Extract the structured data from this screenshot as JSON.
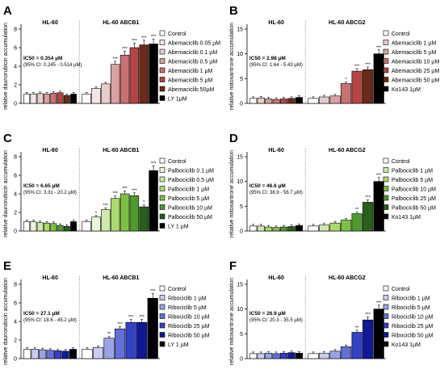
{
  "chart_data": [
    {
      "panel": "A",
      "type": "bar",
      "ylabel": "relative daunorubicin accumulation",
      "ylim": [
        0,
        8
      ],
      "yticks": [
        0,
        2,
        4,
        6,
        8
      ],
      "group_labels": [
        "HL-60",
        "HL-60 ABCB1"
      ],
      "ic50": "IC50 = 0.354 µM",
      "ci": "(95% CI: 0.245 - 0.514 µM)",
      "legend": [
        {
          "label": "Control",
          "color": "#ffffff"
        },
        {
          "label": "Abemaciclib 0.05 µM",
          "color": "#f4e6e6"
        },
        {
          "label": "Abemaciclib 0.1 µM",
          "color": "#e8cccc"
        },
        {
          "label": "Abemaciclib 0.5 µM",
          "color": "#d9a1a1"
        },
        {
          "label": "Abemaciclib 1 µM",
          "color": "#c97171"
        },
        {
          "label": "Abemaciclib 5 µM",
          "color": "#b54545"
        },
        {
          "label": "Abemaciclib 50µM",
          "color": "#6b2a1a"
        },
        {
          "label": "LY 1µM",
          "color": "#000000"
        }
      ],
      "groups": [
        {
          "values": [
            1.0,
            1.0,
            1.05,
            1.0,
            1.1,
            1.15,
            0.85,
            1.0
          ],
          "sig": [
            "",
            "",
            "",
            "",
            "",
            "",
            "",
            ""
          ]
        },
        {
          "values": [
            1.0,
            1.6,
            2.1,
            4.2,
            5.2,
            6.0,
            6.3,
            6.4
          ],
          "sig": [
            "",
            "",
            "",
            "***",
            "***",
            "***",
            "***",
            "***"
          ]
        }
      ]
    },
    {
      "panel": "B",
      "type": "bar",
      "ylabel": "relative mitoxantrone accumulation",
      "ylim": [
        0,
        15
      ],
      "yticks": [
        0,
        5,
        10,
        15
      ],
      "group_labels": [
        "HL-60",
        "HL-60 ABCG2"
      ],
      "ic50": "IC50 = 2.98 µM",
      "ci": "(95% CI: 1.64 - 5.43 µM)",
      "legend": [
        {
          "label": "Control",
          "color": "#ffffff"
        },
        {
          "label": "Abemaciclib 1 µM",
          "color": "#e8cccc"
        },
        {
          "label": "Abemaciclib 5 µM",
          "color": "#d9a1a1"
        },
        {
          "label": "Abemaciclib 10 µM",
          "color": "#c97171"
        },
        {
          "label": "Abemaciclib 25 µM",
          "color": "#b54545"
        },
        {
          "label": "Abemaciclib 50 µM",
          "color": "#6b2a1a"
        },
        {
          "label": "Ko143 1µM",
          "color": "#000000"
        }
      ],
      "groups": [
        {
          "values": [
            1.0,
            1.1,
            0.9,
            0.8,
            0.9,
            1.0,
            1.2
          ],
          "sig": [
            "",
            "",
            "",
            "",
            "",
            "",
            ""
          ]
        },
        {
          "values": [
            1.0,
            1.3,
            1.5,
            4.0,
            6.5,
            6.8,
            10.0
          ],
          "sig": [
            "",
            "",
            "",
            "*",
            "***",
            "***",
            "***"
          ]
        }
      ]
    },
    {
      "panel": "C",
      "type": "bar",
      "ylabel": "relative daunorubicin accumulation",
      "ylim": [
        0,
        8
      ],
      "yticks": [
        0,
        2,
        4,
        6,
        8
      ],
      "group_labels": [
        "HL-60",
        "HL-60 ABCB1"
      ],
      "ic50": "IC50 = 6.65 µM",
      "ci": "(95% CI: 3.31 - 20.2 µM)",
      "legend": [
        {
          "label": "Control",
          "color": "#ffffff"
        },
        {
          "label": "Palbociclib 0.1 µM",
          "color": "#e8f5d8"
        },
        {
          "label": "Palbociclib 0.5 µM",
          "color": "#cdeaa8"
        },
        {
          "label": "Palbociclib 1 µM",
          "color": "#a9dc6a"
        },
        {
          "label": "Palbociclib 5 µM",
          "color": "#7cc242"
        },
        {
          "label": "Palbociclib 10 µM",
          "color": "#4f9a2e"
        },
        {
          "label": "Palbociclib 50 µM",
          "color": "#285f1a"
        },
        {
          "label": "LY 1 µM",
          "color": "#000000"
        }
      ],
      "groups": [
        {
          "values": [
            1.0,
            1.0,
            0.9,
            0.85,
            0.8,
            0.6,
            0.5,
            1.0
          ],
          "sig": [
            "",
            "",
            "",
            "",
            "",
            "",
            "",
            ""
          ]
        },
        {
          "values": [
            1.0,
            1.5,
            2.3,
            3.5,
            4.0,
            3.8,
            2.6,
            6.5
          ],
          "sig": [
            "",
            "*",
            "***",
            "***",
            "***",
            "***",
            "*",
            "***"
          ]
        }
      ]
    },
    {
      "panel": "D",
      "type": "bar",
      "ylabel": "relative mitoxantrone accumulation",
      "ylim": [
        0,
        15
      ],
      "yticks": [
        0,
        5,
        10,
        15
      ],
      "group_labels": [
        "HL-60",
        "HL-60 ABCG2"
      ],
      "ic50": "IC50 = 46.6 µM",
      "ci": "(95% CI: 38.9 - 56.7 µM)",
      "legend": [
        {
          "label": "Control",
          "color": "#ffffff"
        },
        {
          "label": "Palbociclib 1 µM",
          "color": "#cdeaa8"
        },
        {
          "label": "Palbociclib 5 µM",
          "color": "#a9dc6a"
        },
        {
          "label": "Palbociclib 10 µM",
          "color": "#7cc242"
        },
        {
          "label": "Palbociclib 25 µM",
          "color": "#4f9a2e"
        },
        {
          "label": "Palbociclib 50 µM",
          "color": "#285f1a"
        },
        {
          "label": "Ko143 1µM",
          "color": "#000000"
        }
      ],
      "groups": [
        {
          "values": [
            1.0,
            1.0,
            0.8,
            0.7,
            0.8,
            0.9,
            1.1
          ],
          "sig": [
            "",
            "",
            "",
            "",
            "",
            "",
            ""
          ]
        },
        {
          "values": [
            1.0,
            1.2,
            1.6,
            2.2,
            3.5,
            5.8,
            10.0
          ],
          "sig": [
            "",
            "",
            "",
            "",
            "**",
            "***",
            "***"
          ]
        }
      ]
    },
    {
      "panel": "E",
      "type": "bar",
      "ylabel": "relative daunorubicin accumulation",
      "ylim": [
        0,
        8
      ],
      "yticks": [
        0,
        2,
        4,
        6,
        8
      ],
      "group_labels": [
        "HL-60",
        "HL-60 ABCB1"
      ],
      "ic50": "IC50 = 27.1 µM",
      "ci": "(95% CI: 18.6 - 45.2 µM)",
      "legend": [
        {
          "label": "Control",
          "color": "#ffffff"
        },
        {
          "label": "Ribociclib 1 µM",
          "color": "#c9cdf0"
        },
        {
          "label": "Ribociclib 5 µM",
          "color": "#9aa2e6"
        },
        {
          "label": "Ribociclib 10 µM",
          "color": "#6470d8"
        },
        {
          "label": "Ribociclib 25 µM",
          "color": "#3340c8"
        },
        {
          "label": "Ribociclib 50 µM",
          "color": "#10189a"
        },
        {
          "label": "LY 1 µM",
          "color": "#000000"
        }
      ],
      "groups": [
        {
          "values": [
            1.0,
            1.0,
            0.95,
            0.9,
            0.85,
            0.8,
            1.0
          ],
          "sig": [
            "",
            "",
            "",
            "",
            "",
            "",
            ""
          ]
        },
        {
          "values": [
            1.0,
            1.2,
            2.2,
            3.2,
            3.9,
            3.9,
            6.5
          ],
          "sig": [
            "",
            "",
            "**",
            "***",
            "***",
            "***",
            "***"
          ]
        }
      ]
    },
    {
      "panel": "F",
      "type": "bar",
      "ylabel": "relative mitoxantrone accumulation",
      "ylim": [
        0,
        15
      ],
      "yticks": [
        0,
        5,
        10,
        15
      ],
      "group_labels": [
        "HL-60",
        "HL-60 ABCG2"
      ],
      "ic50": "IC50 = 26.9 µM",
      "ci": "(95% CI: 20.3 - 35.5 µM)",
      "legend": [
        {
          "label": "Control",
          "color": "#ffffff"
        },
        {
          "label": "Ribociclib 1 µM",
          "color": "#c9cdf0"
        },
        {
          "label": "Ribociclib 5 µM",
          "color": "#9aa2e6"
        },
        {
          "label": "Ribociclib 10 µM",
          "color": "#6470d8"
        },
        {
          "label": "Ribociclib 25 µM",
          "color": "#3340c8"
        },
        {
          "label": "Ribociclib 50 µM",
          "color": "#10189a"
        },
        {
          "label": "Ko143 1µM",
          "color": "#000000"
        }
      ],
      "groups": [
        {
          "values": [
            1.0,
            1.0,
            1.1,
            1.0,
            1.1,
            1.2,
            1.1
          ],
          "sig": [
            "",
            "",
            "",
            "",
            "",
            "",
            ""
          ]
        },
        {
          "values": [
            1.0,
            1.1,
            1.5,
            2.4,
            5.3,
            7.8,
            10.0
          ],
          "sig": [
            "",
            "",
            "",
            "",
            "**",
            "***",
            "***"
          ]
        }
      ]
    }
  ]
}
